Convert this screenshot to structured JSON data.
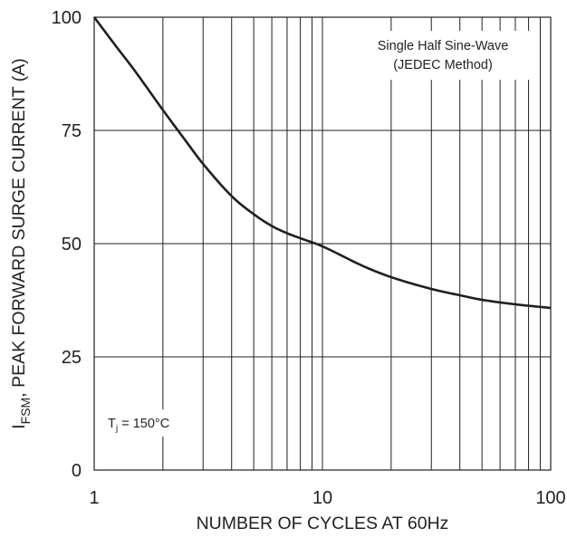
{
  "chart_data": {
    "type": "line",
    "xlabel": "NUMBER OF CYCLES AT 60Hz",
    "ylabel": {
      "main": "I",
      "sub": "FSM",
      "rest": ", PEAK FORWARD SURGE CURRENT (A)"
    },
    "x_scale": "log",
    "xlim": [
      1,
      100
    ],
    "ylim": [
      0,
      100
    ],
    "x_ticks": [
      1,
      10,
      100
    ],
    "x_tick_labels": [
      "1",
      "10",
      "100"
    ],
    "y_ticks": [
      0,
      25,
      50,
      75,
      100
    ],
    "y_tick_labels": [
      "0",
      "25",
      "50",
      "75",
      "100"
    ],
    "grid": true,
    "annotations": {
      "method_line1": "Single Half Sine-Wave",
      "method_line2": "(JEDEC Method)",
      "tj_main": "T",
      "tj_sub": "j",
      "tj_rest": " = 150°C"
    },
    "series": [
      {
        "x": [
          1,
          1.25,
          1.5,
          2,
          2.5,
          3,
          4,
          5,
          6,
          7,
          8,
          10,
          15,
          20,
          30,
          40,
          50,
          70,
          100
        ],
        "y": [
          100,
          93.5,
          88.3,
          79.5,
          72.9,
          67.6,
          60.5,
          56.5,
          53.9,
          52.3,
          51.2,
          49.4,
          45.1,
          42.6,
          40.0,
          38.6,
          37.6,
          36.6,
          35.8
        ]
      }
    ]
  }
}
